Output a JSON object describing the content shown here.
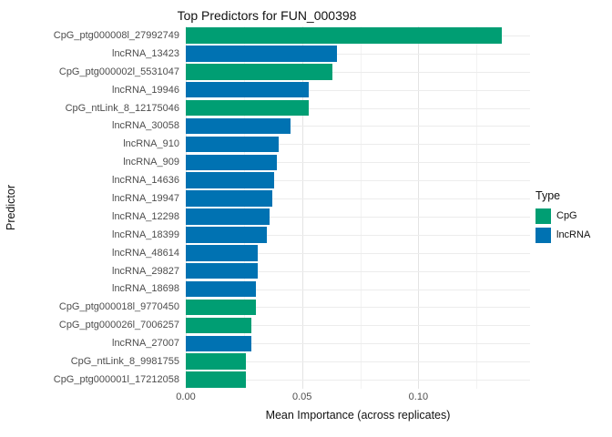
{
  "chart_data": {
    "type": "bar",
    "orientation": "horizontal",
    "title": "Top Predictors for FUN_000398",
    "xlabel": "Mean Importance (across replicates)",
    "ylabel": "Predictor",
    "xlim": [
      0,
      0.148
    ],
    "x_major_ticks": [
      0,
      0.05,
      0.1
    ],
    "x_tick_labels": [
      "0.00",
      "0.05",
      "0.10"
    ],
    "x_minor_ticks": [
      0.025,
      0.075,
      0.125
    ],
    "grid": true,
    "colors": {
      "CpG": "#009E73",
      "lncRNA": "#0072B2"
    },
    "legend": {
      "title": "Type",
      "position": "right",
      "entries": [
        {
          "label": "CpG",
          "color": "#009E73"
        },
        {
          "label": "lncRNA",
          "color": "#0072B2"
        }
      ]
    },
    "bars": [
      {
        "label": "CpG_ptg000008l_27992749",
        "type": "CpG",
        "value": 0.136
      },
      {
        "label": "lncRNA_13423",
        "type": "lncRNA",
        "value": 0.065
      },
      {
        "label": "CpG_ptg000002l_5531047",
        "type": "CpG",
        "value": 0.063
      },
      {
        "label": "lncRNA_19946",
        "type": "lncRNA",
        "value": 0.053
      },
      {
        "label": "CpG_ntLink_8_12175046",
        "type": "CpG",
        "value": 0.053
      },
      {
        "label": "lncRNA_30058",
        "type": "lncRNA",
        "value": 0.045
      },
      {
        "label": "lncRNA_910",
        "type": "lncRNA",
        "value": 0.04
      },
      {
        "label": "lncRNA_909",
        "type": "lncRNA",
        "value": 0.039
      },
      {
        "label": "lncRNA_14636",
        "type": "lncRNA",
        "value": 0.038
      },
      {
        "label": "lncRNA_19947",
        "type": "lncRNA",
        "value": 0.037
      },
      {
        "label": "lncRNA_12298",
        "type": "lncRNA",
        "value": 0.036
      },
      {
        "label": "lncRNA_18399",
        "type": "lncRNA",
        "value": 0.035
      },
      {
        "label": "lncRNA_48614",
        "type": "lncRNA",
        "value": 0.031
      },
      {
        "label": "lncRNA_29827",
        "type": "lncRNA",
        "value": 0.031
      },
      {
        "label": "lncRNA_18698",
        "type": "lncRNA",
        "value": 0.03
      },
      {
        "label": "CpG_ptg000018l_9770450",
        "type": "CpG",
        "value": 0.03
      },
      {
        "label": "CpG_ptg000026l_7006257",
        "type": "CpG",
        "value": 0.028
      },
      {
        "label": "lncRNA_27007",
        "type": "lncRNA",
        "value": 0.028
      },
      {
        "label": "CpG_ntLink_8_9981755",
        "type": "CpG",
        "value": 0.026
      },
      {
        "label": "CpG_ptg000001l_17212058",
        "type": "CpG",
        "value": 0.026
      }
    ]
  }
}
